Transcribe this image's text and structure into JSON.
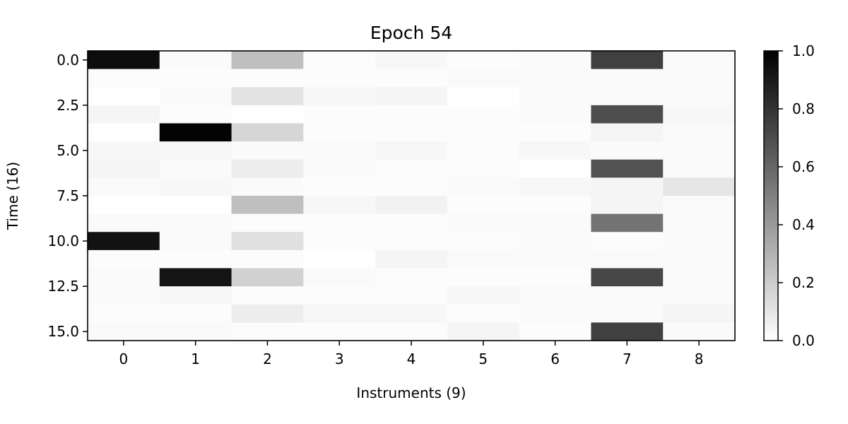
{
  "chart_data": {
    "type": "heatmap",
    "title": "Epoch 54",
    "xlabel": "Instruments (9)",
    "ylabel": "Time (16)",
    "x_categories": [
      "0",
      "1",
      "2",
      "3",
      "4",
      "5",
      "6",
      "7",
      "8"
    ],
    "y_range": [
      -0.5,
      15.5
    ],
    "y_ticks": [
      0.0,
      2.5,
      5.0,
      7.5,
      10.0,
      12.5,
      15.0
    ],
    "y_tick_labels": [
      "0.0",
      "2.5",
      "5.0",
      "7.5",
      "10.0",
      "12.5",
      "15.0"
    ],
    "colorbar": {
      "range": [
        0.0,
        1.0
      ],
      "ticks": [
        "0.0",
        "0.2",
        "0.4",
        "0.6",
        "0.8",
        "1.0"
      ],
      "colormap": "gray_r"
    },
    "grid": false,
    "values": [
      [
        0.95,
        0.02,
        0.25,
        0.01,
        0.03,
        0.01,
        0.02,
        0.75,
        0.02
      ],
      [
        0.01,
        0.01,
        0.01,
        0.01,
        0.01,
        0.02,
        0.02,
        0.02,
        0.02
      ],
      [
        0.0,
        0.02,
        0.11,
        0.03,
        0.04,
        0.0,
        0.02,
        0.02,
        0.02
      ],
      [
        0.04,
        0.01,
        0.0,
        0.01,
        0.01,
        0.01,
        0.02,
        0.7,
        0.03
      ],
      [
        0.0,
        0.99,
        0.16,
        0.01,
        0.01,
        0.01,
        0.01,
        0.04,
        0.02
      ],
      [
        0.03,
        0.03,
        0.02,
        0.02,
        0.03,
        0.01,
        0.03,
        0.02,
        0.02
      ],
      [
        0.04,
        0.02,
        0.07,
        0.02,
        0.01,
        0.01,
        0.0,
        0.68,
        0.02
      ],
      [
        0.02,
        0.03,
        0.02,
        0.01,
        0.01,
        0.02,
        0.03,
        0.04,
        0.1
      ],
      [
        0.0,
        0.0,
        0.25,
        0.03,
        0.05,
        0.01,
        0.01,
        0.04,
        0.02
      ],
      [
        0.02,
        0.02,
        0.01,
        0.01,
        0.01,
        0.02,
        0.02,
        0.55,
        0.02
      ],
      [
        0.93,
        0.02,
        0.12,
        0.01,
        0.01,
        0.01,
        0.02,
        0.01,
        0.02
      ],
      [
        0.01,
        0.01,
        0.01,
        0.0,
        0.04,
        0.02,
        0.02,
        0.02,
        0.02
      ],
      [
        0.02,
        0.92,
        0.18,
        0.02,
        0.01,
        0.01,
        0.01,
        0.72,
        0.02
      ],
      [
        0.02,
        0.03,
        0.01,
        0.01,
        0.01,
        0.03,
        0.02,
        0.02,
        0.02
      ],
      [
        0.01,
        0.01,
        0.07,
        0.03,
        0.03,
        0.01,
        0.02,
        0.02,
        0.04
      ],
      [
        0.02,
        0.02,
        0.01,
        0.01,
        0.01,
        0.04,
        0.01,
        0.75,
        0.02
      ]
    ]
  }
}
